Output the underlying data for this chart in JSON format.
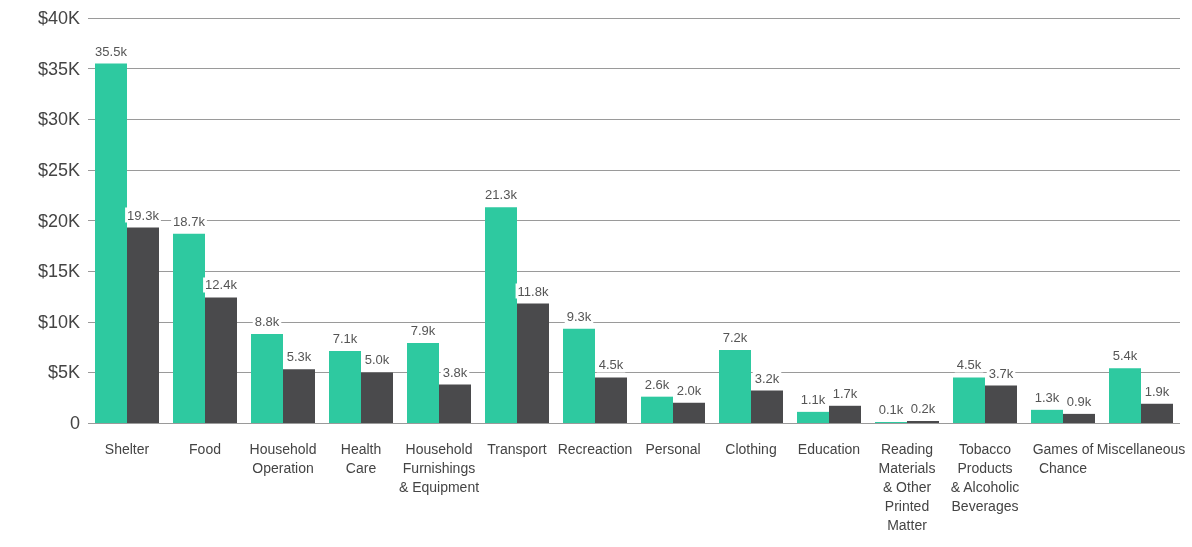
{
  "chart_data": {
    "type": "bar",
    "categories": [
      "Shelter",
      "Food",
      "Household Operation",
      "Health Care",
      "Household Furnishings & Equipment",
      "Transport",
      "Recreaction",
      "Personal",
      "Clothing",
      "Education",
      "Reading Materials & Other Printed Matter",
      "Tobacco Products & Alcoholic Beverages",
      "Games of Chance",
      "Miscellaneous"
    ],
    "series": [
      {
        "color": "#2ec9a0",
        "values": [
          35500,
          18700,
          8800,
          7100,
          7900,
          21300,
          9300,
          2600,
          7200,
          1100,
          100,
          4500,
          1300,
          5400
        ],
        "value_labels": [
          "35.5k",
          "18.7k",
          "8.8k",
          "7.1k",
          "7.9k",
          "21.3k",
          "9.3k",
          "2.6k",
          "7.2k",
          "1.1k",
          "0.1k",
          "4.5k",
          "1.3k",
          "5.4k"
        ]
      },
      {
        "color": "#4a4a4c",
        "values": [
          19300,
          12400,
          5300,
          5000,
          3800,
          11800,
          4500,
          2000,
          3200,
          1700,
          200,
          3700,
          900,
          1900
        ],
        "value_labels": [
          "19.3k",
          "12.4k",
          "5.3k",
          "5.0k",
          "3.8k",
          "11.8k",
          "4.5k",
          "2.0k",
          "3.2k",
          "1.7k",
          "0.2k",
          "3.7k",
          "0.9k",
          "1.9k"
        ]
      }
    ],
    "ylim": [
      0,
      40000
    ],
    "yticks": [
      {
        "value": 0,
        "label": "0"
      },
      {
        "value": 5000,
        "label": "$5K"
      },
      {
        "value": 10000,
        "label": "$10K"
      },
      {
        "value": 15000,
        "label": "$15K"
      },
      {
        "value": 20000,
        "label": "$20K"
      },
      {
        "value": 25000,
        "label": "$25K"
      },
      {
        "value": 30000,
        "label": "$30K"
      },
      {
        "value": 35000,
        "label": "$35K"
      },
      {
        "value": 40000,
        "label": "$40K"
      }
    ],
    "grid": "y"
  }
}
